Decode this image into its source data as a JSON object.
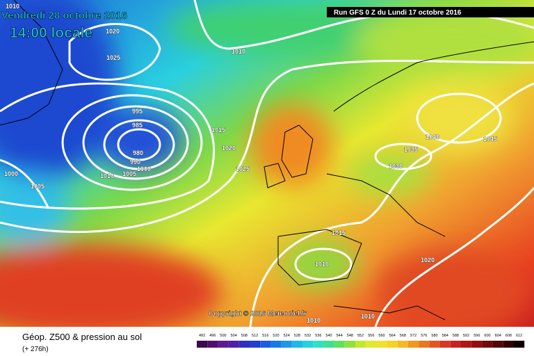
{
  "header": {
    "date": "Vendredi 28 octobre 2016",
    "time": "14:00 locale",
    "run": "Run GFS 0 Z du Lundi 17 octobre 2016"
  },
  "footer": {
    "title": "Géop. Z500 & pression au sol",
    "lead": "(+ 276h)",
    "copyright": "Copyright © 2016 Meteociel.fr"
  },
  "isobar_labels": [
    "1010",
    "1020",
    "1025",
    "1010",
    "995",
    "985",
    "980",
    "990",
    "1000",
    "1005",
    "1010",
    "1005",
    "1000",
    "1015",
    "1020",
    "1025",
    "1040",
    "1045",
    "1035",
    "1030",
    "1015",
    "1010",
    "1020",
    "1010",
    "1010"
  ],
  "scale": [
    492,
    496,
    500,
    504,
    508,
    512,
    516,
    520,
    524,
    528,
    532,
    536,
    540,
    544,
    548,
    552,
    556,
    560,
    564,
    568,
    572,
    576,
    580,
    584,
    588,
    592,
    596,
    600,
    604,
    608,
    612
  ]
}
